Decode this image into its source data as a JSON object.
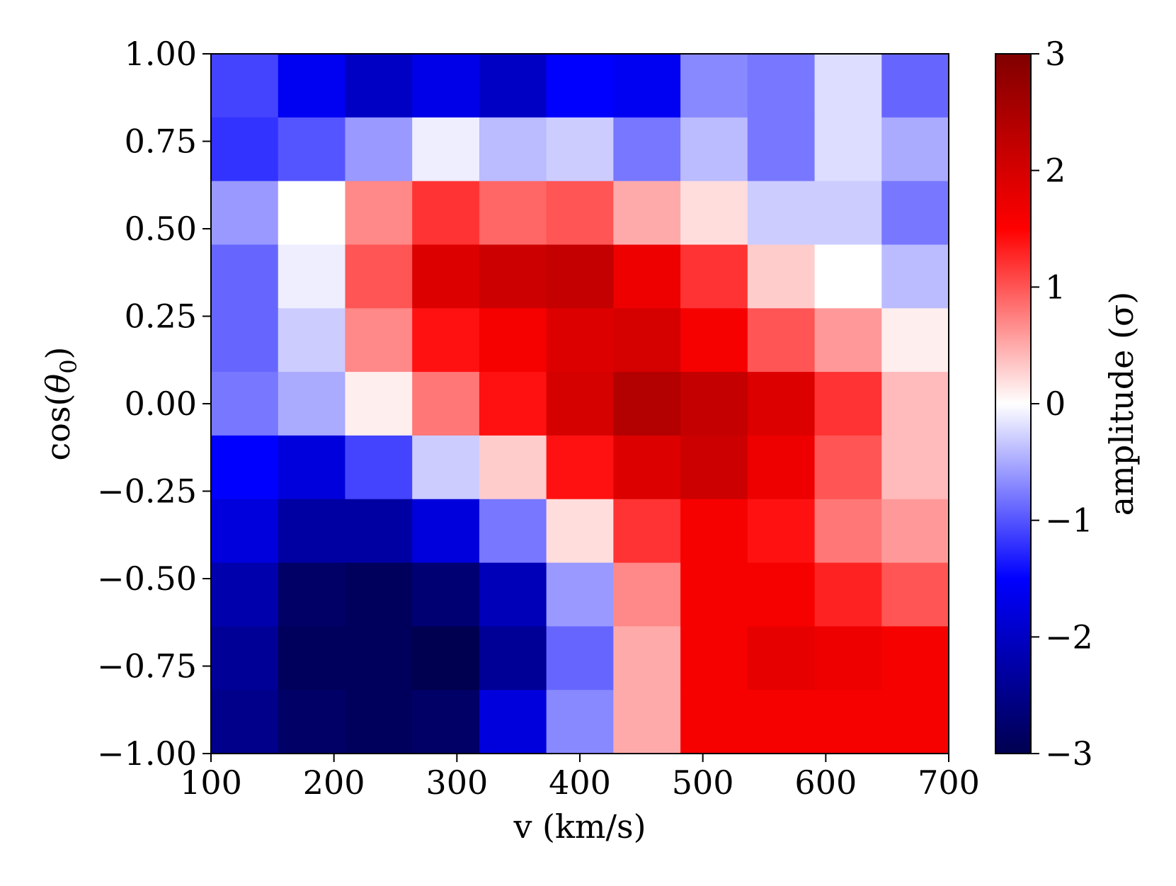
{
  "chart_data": {
    "type": "heatmap",
    "title": "",
    "xlabel": "v (km/s)",
    "ylabel_prefix": "cos(",
    "ylabel_symbol": "θ",
    "ylabel_subscript": "0",
    "ylabel_suffix": ")",
    "xlim": [
      100,
      700
    ],
    "ylim": [
      -1.0,
      1.0
    ],
    "x_ticks": [
      100,
      200,
      300,
      400,
      500,
      600,
      700
    ],
    "x_tick_labels": [
      "100",
      "200",
      "300",
      "400",
      "500",
      "600",
      "700"
    ],
    "y_ticks": [
      1.0,
      0.75,
      0.5,
      0.25,
      0.0,
      -0.25,
      -0.5,
      -0.75,
      -1.0
    ],
    "y_tick_labels": [
      "1.00",
      "0.75",
      "0.50",
      "0.25",
      "0.00",
      "−0.25",
      "−0.50",
      "−0.75",
      "−1.00"
    ],
    "n_cols": 11,
    "n_rows": 11,
    "rows_top_to_bottom": [
      [
        -1.1,
        -1.6,
        -2.0,
        -1.7,
        -2.0,
        -1.5,
        -1.6,
        -0.7,
        -0.8,
        -0.2,
        -0.9
      ],
      [
        -1.2,
        -1.0,
        -0.6,
        -0.1,
        -0.4,
        -0.3,
        -0.8,
        -0.4,
        -0.8,
        -0.2,
        -0.5
      ],
      [
        -0.6,
        0.0,
        0.7,
        1.2,
        0.9,
        1.0,
        0.5,
        0.2,
        -0.3,
        -0.3,
        -0.8
      ],
      [
        -0.9,
        -0.1,
        1.0,
        1.9,
        2.1,
        2.2,
        1.7,
        1.2,
        0.3,
        0.0,
        -0.4
      ],
      [
        -0.9,
        -0.3,
        0.7,
        1.4,
        1.6,
        1.9,
        2.0,
        1.6,
        1.0,
        0.6,
        0.1
      ],
      [
        -0.8,
        -0.5,
        0.1,
        0.8,
        1.4,
        2.0,
        2.4,
        2.2,
        1.9,
        1.2,
        0.4
      ],
      [
        -1.5,
        -1.8,
        -1.1,
        -0.3,
        0.3,
        1.4,
        1.9,
        2.1,
        1.7,
        1.0,
        0.4
      ],
      [
        -1.8,
        -2.3,
        -2.3,
        -1.8,
        -0.8,
        0.2,
        1.2,
        1.6,
        1.4,
        0.8,
        0.6
      ],
      [
        -2.2,
        -2.8,
        -2.9,
        -2.7,
        -2.1,
        -0.6,
        0.7,
        1.6,
        1.6,
        1.3,
        1.0
      ],
      [
        -2.4,
        -2.9,
        -2.9,
        -3.0,
        -2.4,
        -0.9,
        0.5,
        1.6,
        1.8,
        1.7,
        1.6
      ],
      [
        -2.5,
        -2.8,
        -2.9,
        -2.8,
        -1.8,
        -0.7,
        0.5,
        1.6,
        1.6,
        1.6,
        1.6
      ]
    ],
    "colorscale": "bwr",
    "colormap_stops": [
      "#000050",
      "#0000ff",
      "#ffffff",
      "#ff0000",
      "#800000"
    ],
    "clim": [
      -3,
      3
    ],
    "colorbar_ticks": [
      3,
      2,
      1,
      0,
      -1,
      -2,
      -3
    ],
    "colorbar_tick_labels": [
      "3",
      "2",
      "1",
      "0",
      "−1",
      "−2",
      "−3"
    ],
    "colorbar_label": "amplitude (σ)",
    "grid": false,
    "legend": "none"
  }
}
